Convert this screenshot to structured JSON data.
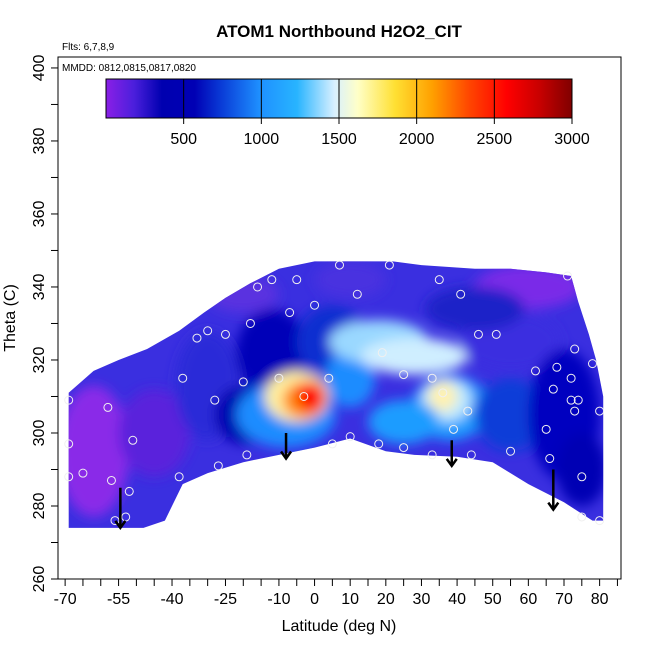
{
  "chart_data": {
    "type": "heatmap",
    "title": "ATOM1 Northbound H2O2_CIT",
    "annotations": {
      "flights": "Flts: 6,7,8,9",
      "dates": "MMDD: 0812,0815,0817,0820"
    },
    "xlabel": "Latitude (deg N)",
    "ylabel": "Theta (C)",
    "xlim": [
      -70,
      85
    ],
    "ylim": [
      260,
      403
    ],
    "x_ticks": [
      "-70",
      "-55",
      "-40",
      "-25",
      "-10",
      "0",
      "10",
      "20",
      "30",
      "40",
      "50",
      "60",
      "70",
      "80"
    ],
    "y_ticks": [
      "260",
      "280",
      "300",
      "320",
      "340",
      "360",
      "380",
      "400"
    ],
    "colorbar": {
      "range": [
        0,
        3000
      ],
      "ticks": [
        "500",
        "1000",
        "1500",
        "2000",
        "2500",
        "3000"
      ],
      "colors": [
        "#8a1fe6",
        "#3b1fd8",
        "#0000b0",
        "#0a2fd6",
        "#1e90ff",
        "#00bfff",
        "#bfe9ff",
        "#ffffcc",
        "#ffe033",
        "#ffa500",
        "#ff4500",
        "#ff0000",
        "#c80000",
        "#800000"
      ]
    },
    "series": [
      {
        "points": [
          {
            "x": -69,
            "y": 309
          },
          {
            "x": -69,
            "y": 297
          },
          {
            "x": -69,
            "y": 288
          },
          {
            "x": -65,
            "y": 289
          },
          {
            "x": -58,
            "y": 307
          },
          {
            "x": -57,
            "y": 287
          },
          {
            "x": -56,
            "y": 276
          },
          {
            "x": -52,
            "y": 284
          },
          {
            "x": -53,
            "y": 277
          },
          {
            "x": -51,
            "y": 298
          },
          {
            "x": -37,
            "y": 315
          },
          {
            "x": -38,
            "y": 288
          },
          {
            "x": -33,
            "y": 326
          },
          {
            "x": -30,
            "y": 328
          },
          {
            "x": -28,
            "y": 309
          },
          {
            "x": -27,
            "y": 291
          },
          {
            "x": -25,
            "y": 327
          },
          {
            "x": -20,
            "y": 314
          },
          {
            "x": -19,
            "y": 294
          },
          {
            "x": -18,
            "y": 330
          },
          {
            "x": -16,
            "y": 340
          },
          {
            "x": -12,
            "y": 342
          },
          {
            "x": -10,
            "y": 315
          },
          {
            "x": -7,
            "y": 333
          },
          {
            "x": -5,
            "y": 342
          },
          {
            "x": -3,
            "y": 310
          },
          {
            "x": 0,
            "y": 335
          },
          {
            "x": 4,
            "y": 315
          },
          {
            "x": 5,
            "y": 297
          },
          {
            "x": 7,
            "y": 346
          },
          {
            "x": 10,
            "y": 299
          },
          {
            "x": 12,
            "y": 338
          },
          {
            "x": 18,
            "y": 297
          },
          {
            "x": 19,
            "y": 322
          },
          {
            "x": 21,
            "y": 346
          },
          {
            "x": 25,
            "y": 316
          },
          {
            "x": 25,
            "y": 296
          },
          {
            "x": 33,
            "y": 315
          },
          {
            "x": 33,
            "y": 294
          },
          {
            "x": 35,
            "y": 342
          },
          {
            "x": 36,
            "y": 311
          },
          {
            "x": 39,
            "y": 301
          },
          {
            "x": 41,
            "y": 338
          },
          {
            "x": 43,
            "y": 306
          },
          {
            "x": 44,
            "y": 294
          },
          {
            "x": 46,
            "y": 327
          },
          {
            "x": 51,
            "y": 327
          },
          {
            "x": 55,
            "y": 295
          },
          {
            "x": 62,
            "y": 317
          },
          {
            "x": 65,
            "y": 301
          },
          {
            "x": 66,
            "y": 293
          },
          {
            "x": 67,
            "y": 312
          },
          {
            "x": 68,
            "y": 318
          },
          {
            "x": 71,
            "y": 343
          },
          {
            "x": 72,
            "y": 309
          },
          {
            "x": 72,
            "y": 315
          },
          {
            "x": 73,
            "y": 323
          },
          {
            "x": 73,
            "y": 306
          },
          {
            "x": 74,
            "y": 309
          },
          {
            "x": 75,
            "y": 288
          },
          {
            "x": 75,
            "y": 277
          },
          {
            "x": 78,
            "y": 319
          },
          {
            "x": 80,
            "y": 306
          },
          {
            "x": 80,
            "y": 276
          }
        ]
      }
    ],
    "arrows": [
      {
        "x": -54.5,
        "y_top": 285,
        "y_tip": 274
      },
      {
        "x": -8,
        "y_top": 300,
        "y_tip": 293
      },
      {
        "x": 38.5,
        "y_top": 298,
        "y_tip": 291
      },
      {
        "x": 67,
        "y_top": 290,
        "y_tip": 279
      }
    ]
  }
}
